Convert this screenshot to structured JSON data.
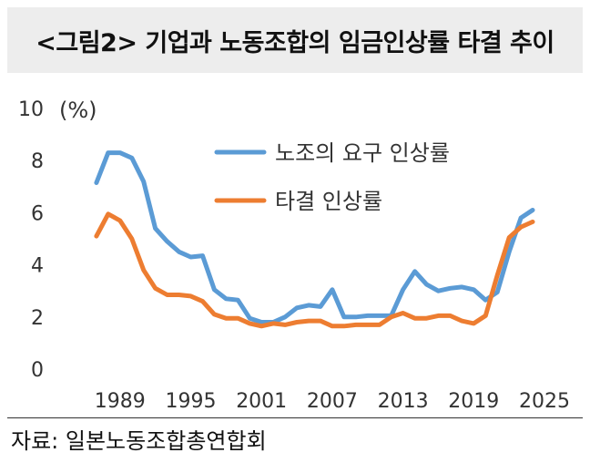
{
  "title": "<그림2> 기업과 노동조합의 임금인상률 타결 추이",
  "source": "자료: 일본노동조합총연합회",
  "chart_data": {
    "type": "line",
    "unit_label": "(%)",
    "ylim": [
      0,
      10
    ],
    "y_ticks": [
      0,
      2,
      4,
      6,
      8,
      10
    ],
    "xlim": [
      1985,
      2025
    ],
    "x_ticks": [
      1989,
      1995,
      2001,
      2007,
      2013,
      2019,
      2025
    ],
    "legend_position": "top-center",
    "x": [
      1987,
      1988,
      1989,
      1990,
      1991,
      1992,
      1993,
      1994,
      1995,
      1996,
      1997,
      1998,
      1999,
      2000,
      2001,
      2002,
      2003,
      2004,
      2005,
      2006,
      2007,
      2008,
      2009,
      2010,
      2011,
      2012,
      2013,
      2014,
      2015,
      2016,
      2017,
      2018,
      2019,
      2020,
      2021,
      2022,
      2023,
      2024
    ],
    "series": [
      {
        "name": "노조의 요구 인상률",
        "color": "#5b9bd5",
        "values": [
          7.15,
          8.3,
          8.3,
          8.1,
          7.2,
          5.4,
          4.9,
          4.5,
          4.3,
          4.35,
          3.05,
          2.7,
          2.65,
          1.95,
          1.8,
          1.8,
          2.0,
          2.35,
          2.45,
          2.4,
          3.05,
          2.0,
          2.0,
          2.05,
          2.05,
          2.05,
          3.05,
          3.75,
          3.25,
          3.0,
          3.1,
          3.15,
          3.05,
          2.65,
          2.95,
          4.5,
          5.8,
          6.1
        ]
      },
      {
        "name": "타결 인상률",
        "color": "#ed7d31",
        "values": [
          5.1,
          5.95,
          5.7,
          5.0,
          3.8,
          3.1,
          2.85,
          2.85,
          2.8,
          2.6,
          2.1,
          1.95,
          1.95,
          1.75,
          1.65,
          1.75,
          1.7,
          1.8,
          1.85,
          1.85,
          1.65,
          1.65,
          1.7,
          1.7,
          1.7,
          2.0,
          2.15,
          1.95,
          1.95,
          2.05,
          2.05,
          1.85,
          1.75,
          2.05,
          3.6,
          5.05,
          5.45,
          5.65
        ]
      }
    ]
  }
}
